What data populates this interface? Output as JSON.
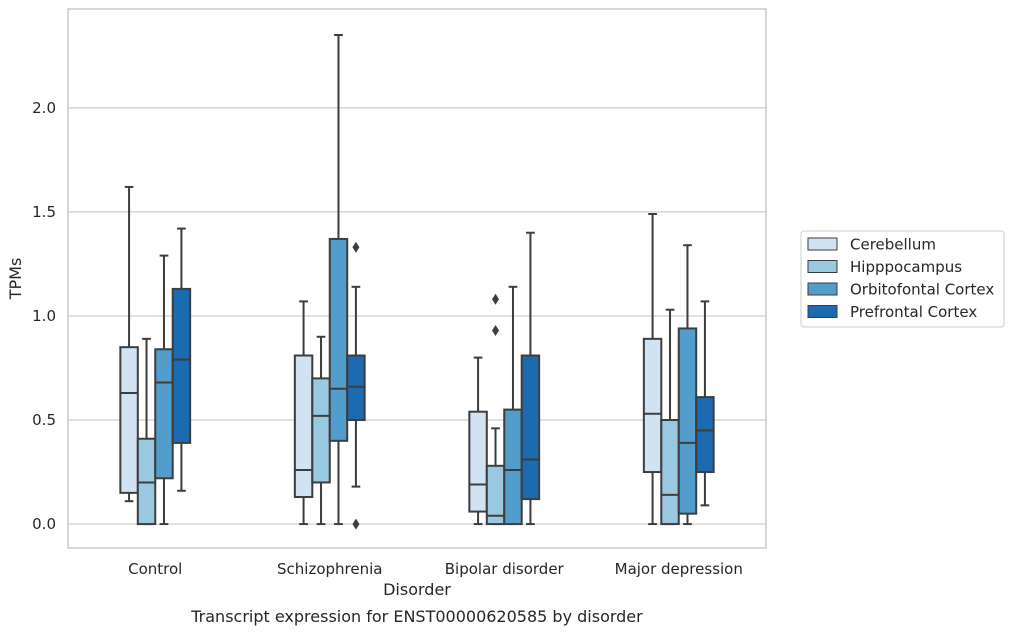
{
  "chart_data": {
    "type": "box",
    "title": "",
    "caption": "Transcript expression for ENST00000620585 by disorder",
    "xlabel": "Disorder",
    "ylabel": "TPMs",
    "ylim": [
      -0.115,
      2.475
    ],
    "yticks": [
      0.0,
      0.5,
      1.0,
      1.5,
      2.0
    ],
    "ytick_labels": [
      "0.0",
      "0.5",
      "1.0",
      "1.5",
      "2.0"
    ],
    "grid": "horizontal",
    "legend_position": "right",
    "categories": [
      "Control",
      "Schizophrenia",
      "Bipolar disorder",
      "Major depression"
    ],
    "series": [
      {
        "name": "Cerebellum",
        "color": "#d1e3f3",
        "boxes": [
          {
            "whislo": 0.11,
            "q1": 0.15,
            "med": 0.63,
            "q3": 0.85,
            "whishi": 1.62,
            "fliers": []
          },
          {
            "whislo": 0.0,
            "q1": 0.13,
            "med": 0.26,
            "q3": 0.81,
            "whishi": 1.07,
            "fliers": []
          },
          {
            "whislo": 0.0,
            "q1": 0.06,
            "med": 0.19,
            "q3": 0.54,
            "whishi": 0.8,
            "fliers": []
          },
          {
            "whislo": 0.0,
            "q1": 0.25,
            "med": 0.53,
            "q3": 0.89,
            "whishi": 1.49,
            "fliers": []
          }
        ]
      },
      {
        "name": "Hipppocampus",
        "color": "#9ac8e0",
        "boxes": [
          {
            "whislo": 0.0,
            "q1": 0.0,
            "med": 0.2,
            "q3": 0.41,
            "whishi": 0.89,
            "fliers": []
          },
          {
            "whislo": 0.0,
            "q1": 0.2,
            "med": 0.52,
            "q3": 0.7,
            "whishi": 0.9,
            "fliers": []
          },
          {
            "whislo": 0.0,
            "q1": 0.0,
            "med": 0.04,
            "q3": 0.28,
            "whishi": 0.46,
            "fliers": [
              0.93,
              1.08
            ]
          },
          {
            "whislo": 0.0,
            "q1": 0.0,
            "med": 0.14,
            "q3": 0.5,
            "whishi": 1.03,
            "fliers": []
          }
        ]
      },
      {
        "name": "Orbitofontal Cortex",
        "color": "#529dcc",
        "boxes": [
          {
            "whislo": 0.0,
            "q1": 0.22,
            "med": 0.68,
            "q3": 0.84,
            "whishi": 1.29,
            "fliers": []
          },
          {
            "whislo": 0.0,
            "q1": 0.4,
            "med": 0.65,
            "q3": 1.37,
            "whishi": 2.35,
            "fliers": []
          },
          {
            "whislo": 0.0,
            "q1": 0.0,
            "med": 0.26,
            "q3": 0.55,
            "whishi": 1.14,
            "fliers": []
          },
          {
            "whislo": 0.0,
            "q1": 0.05,
            "med": 0.39,
            "q3": 0.94,
            "whishi": 1.34,
            "fliers": []
          }
        ]
      },
      {
        "name": "Prefrontal Cortex",
        "color": "#1c6aaf",
        "boxes": [
          {
            "whislo": 0.16,
            "q1": 0.39,
            "med": 0.79,
            "q3": 1.13,
            "whishi": 1.42,
            "fliers": []
          },
          {
            "whislo": 0.18,
            "q1": 0.5,
            "med": 0.66,
            "q3": 0.81,
            "whishi": 1.14,
            "fliers": [
              0.0,
              1.33
            ]
          },
          {
            "whislo": 0.0,
            "q1": 0.12,
            "med": 0.31,
            "q3": 0.81,
            "whishi": 1.4,
            "fliers": []
          },
          {
            "whislo": 0.09,
            "q1": 0.25,
            "med": 0.45,
            "q3": 0.61,
            "whishi": 1.07,
            "fliers": []
          }
        ]
      }
    ]
  }
}
